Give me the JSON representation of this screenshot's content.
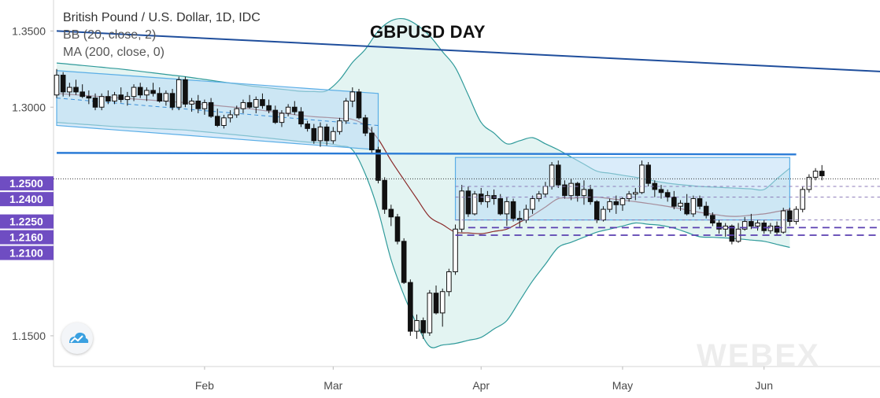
{
  "legend": {
    "symbol": "British Pound / U.S. Dollar, 1D, IDC",
    "bb": "BB (20, close, 2)",
    "ma": "MA (200, close, 0)"
  },
  "watermark_text": "WEBEX",
  "colors": {
    "up_candle": "#ffffff",
    "down_candle": "#111111",
    "band_fill": "#d9f0ee",
    "band_line": "#2f9a9a",
    "basis": "#8a2a2a",
    "trend_dark": "#1f4e9c",
    "support": "#2a7bd6",
    "channel": "#bcdcf5",
    "purple": "#5a3fb0",
    "badge": "#6f4dc2"
  },
  "chart_data": {
    "type": "candlestick",
    "title": "GBPUSD DAY",
    "y_axis": {
      "ticks": [
        "1.3500",
        "1.3000",
        "1.1500"
      ],
      "range": [
        1.135,
        1.37
      ]
    },
    "price_badges": [
      "1.2500",
      "1.2400",
      "1.2250",
      "1.2160",
      "1.2100"
    ],
    "x_axis": {
      "ticks": [
        "Feb",
        "Mar",
        "Apr",
        "May",
        "Jun"
      ],
      "tick_index": [
        23,
        43,
        66,
        88,
        110
      ]
    },
    "candles_ohlc": [
      [
        1.308,
        1.325,
        1.306,
        1.321
      ],
      [
        1.321,
        1.323,
        1.307,
        1.31
      ],
      [
        1.31,
        1.316,
        1.307,
        1.313
      ],
      [
        1.313,
        1.318,
        1.308,
        1.31
      ],
      [
        1.31,
        1.315,
        1.306,
        1.307
      ],
      [
        1.307,
        1.311,
        1.302,
        1.306
      ],
      [
        1.306,
        1.309,
        1.298,
        1.3
      ],
      [
        1.3,
        1.309,
        1.298,
        1.307
      ],
      [
        1.307,
        1.311,
        1.302,
        1.304
      ],
      [
        1.304,
        1.31,
        1.302,
        1.308
      ],
      [
        1.308,
        1.313,
        1.303,
        1.305
      ],
      [
        1.305,
        1.31,
        1.301,
        1.307
      ],
      [
        1.307,
        1.315,
        1.304,
        1.313
      ],
      [
        1.313,
        1.316,
        1.306,
        1.308
      ],
      [
        1.308,
        1.313,
        1.304,
        1.311
      ],
      [
        1.311,
        1.316,
        1.307,
        1.309
      ],
      [
        1.309,
        1.313,
        1.303,
        1.304
      ],
      [
        1.304,
        1.311,
        1.301,
        1.309
      ],
      [
        1.309,
        1.312,
        1.298,
        1.3
      ],
      [
        1.3,
        1.32,
        1.298,
        1.318
      ],
      [
        1.318,
        1.32,
        1.3,
        1.302
      ],
      [
        1.302,
        1.306,
        1.297,
        1.304
      ],
      [
        1.304,
        1.308,
        1.296,
        1.299
      ],
      [
        1.299,
        1.305,
        1.295,
        1.303
      ],
      [
        1.303,
        1.306,
        1.293,
        1.294
      ],
      [
        1.294,
        1.299,
        1.287,
        1.288
      ],
      [
        1.288,
        1.295,
        1.286,
        1.293
      ],
      [
        1.293,
        1.298,
        1.29,
        1.295
      ],
      [
        1.295,
        1.301,
        1.293,
        1.299
      ],
      [
        1.299,
        1.305,
        1.296,
        1.303
      ],
      [
        1.303,
        1.308,
        1.299,
        1.3
      ],
      [
        1.3,
        1.307,
        1.296,
        1.305
      ],
      [
        1.305,
        1.309,
        1.299,
        1.301
      ],
      [
        1.301,
        1.305,
        1.296,
        1.298
      ],
      [
        1.298,
        1.301,
        1.289,
        1.29
      ],
      [
        1.29,
        1.298,
        1.287,
        1.296
      ],
      [
        1.296,
        1.302,
        1.294,
        1.3
      ],
      [
        1.3,
        1.304,
        1.295,
        1.297
      ],
      [
        1.297,
        1.3,
        1.287,
        1.289
      ],
      [
        1.289,
        1.291,
        1.284,
        1.286
      ],
      [
        1.286,
        1.289,
        1.276,
        1.278
      ],
      [
        1.278,
        1.29,
        1.274,
        1.287
      ],
      [
        1.287,
        1.289,
        1.275,
        1.278
      ],
      [
        1.278,
        1.287,
        1.276,
        1.284
      ],
      [
        1.284,
        1.293,
        1.282,
        1.291
      ],
      [
        1.291,
        1.306,
        1.289,
        1.304
      ],
      [
        1.304,
        1.313,
        1.3,
        1.31
      ],
      [
        1.31,
        1.312,
        1.292,
        1.293
      ],
      [
        1.293,
        1.295,
        1.281,
        1.283
      ],
      [
        1.283,
        1.287,
        1.27,
        1.272
      ],
      [
        1.272,
        1.274,
        1.25,
        1.252
      ],
      [
        1.252,
        1.254,
        1.23,
        1.233
      ],
      [
        1.233,
        1.236,
        1.222,
        1.228
      ],
      [
        1.228,
        1.23,
        1.21,
        1.212
      ],
      [
        1.212,
        1.214,
        1.184,
        1.185
      ],
      [
        1.185,
        1.187,
        1.15,
        1.153
      ],
      [
        1.153,
        1.164,
        1.148,
        1.16
      ],
      [
        1.16,
        1.162,
        1.148,
        1.152
      ],
      [
        1.152,
        1.18,
        1.15,
        1.178
      ],
      [
        1.178,
        1.183,
        1.164,
        1.165
      ],
      [
        1.165,
        1.181,
        1.156,
        1.179
      ],
      [
        1.179,
        1.194,
        1.176,
        1.192
      ],
      [
        1.192,
        1.223,
        1.19,
        1.22
      ],
      [
        1.22,
        1.249,
        1.218,
        1.245
      ],
      [
        1.245,
        1.248,
        1.228,
        1.23
      ],
      [
        1.23,
        1.245,
        1.229,
        1.243
      ],
      [
        1.243,
        1.247,
        1.236,
        1.238
      ],
      [
        1.238,
        1.245,
        1.234,
        1.242
      ],
      [
        1.242,
        1.246,
        1.236,
        1.24
      ],
      [
        1.24,
        1.243,
        1.229,
        1.23
      ],
      [
        1.23,
        1.241,
        1.222,
        1.238
      ],
      [
        1.238,
        1.24,
        1.225,
        1.227
      ],
      [
        1.227,
        1.232,
        1.221,
        1.226
      ],
      [
        1.226,
        1.236,
        1.224,
        1.233
      ],
      [
        1.233,
        1.242,
        1.23,
        1.24
      ],
      [
        1.24,
        1.245,
        1.238,
        1.243
      ],
      [
        1.243,
        1.251,
        1.241,
        1.248
      ],
      [
        1.248,
        1.264,
        1.246,
        1.262
      ],
      [
        1.262,
        1.265,
        1.247,
        1.249
      ],
      [
        1.249,
        1.252,
        1.24,
        1.242
      ],
      [
        1.242,
        1.253,
        1.239,
        1.25
      ],
      [
        1.25,
        1.251,
        1.238,
        1.242
      ],
      [
        1.242,
        1.252,
        1.236,
        1.246
      ],
      [
        1.246,
        1.249,
        1.236,
        1.238
      ],
      [
        1.238,
        1.239,
        1.224,
        1.226
      ],
      [
        1.226,
        1.235,
        1.225,
        1.233
      ],
      [
        1.233,
        1.24,
        1.231,
        1.238
      ],
      [
        1.238,
        1.242,
        1.23,
        1.236
      ],
      [
        1.236,
        1.241,
        1.232,
        1.24
      ],
      [
        1.24,
        1.245,
        1.238,
        1.243
      ],
      [
        1.243,
        1.247,
        1.239,
        1.244
      ],
      [
        1.244,
        1.265,
        1.243,
        1.262
      ],
      [
        1.262,
        1.264,
        1.248,
        1.25
      ],
      [
        1.25,
        1.252,
        1.241,
        1.246
      ],
      [
        1.246,
        1.249,
        1.24,
        1.244
      ],
      [
        1.244,
        1.246,
        1.238,
        1.241
      ],
      [
        1.241,
        1.245,
        1.233,
        1.235
      ],
      [
        1.235,
        1.239,
        1.232,
        1.237
      ],
      [
        1.237,
        1.243,
        1.229,
        1.23
      ],
      [
        1.23,
        1.242,
        1.228,
        1.24
      ],
      [
        1.24,
        1.242,
        1.233,
        1.235
      ],
      [
        1.235,
        1.238,
        1.227,
        1.229
      ],
      [
        1.229,
        1.231,
        1.222,
        1.224
      ],
      [
        1.224,
        1.226,
        1.217,
        1.22
      ],
      [
        1.22,
        1.224,
        1.215,
        1.222
      ],
      [
        1.222,
        1.223,
        1.21,
        1.212
      ],
      [
        1.212,
        1.224,
        1.211,
        1.22
      ],
      [
        1.22,
        1.228,
        1.219,
        1.225
      ],
      [
        1.225,
        1.23,
        1.22,
        1.222
      ],
      [
        1.222,
        1.226,
        1.219,
        1.224
      ],
      [
        1.224,
        1.226,
        1.217,
        1.219
      ],
      [
        1.219,
        1.224,
        1.217,
        1.222
      ],
      [
        1.222,
        1.225,
        1.216,
        1.218
      ],
      [
        1.218,
        1.234,
        1.217,
        1.232
      ],
      [
        1.232,
        1.234,
        1.222,
        1.225
      ],
      [
        1.225,
        1.235,
        1.223,
        1.233
      ],
      [
        1.233,
        1.248,
        1.231,
        1.246
      ],
      [
        1.246,
        1.256,
        1.244,
        1.254
      ],
      [
        1.254,
        1.26,
        1.252,
        1.258
      ],
      [
        1.258,
        1.262,
        1.252,
        1.255
      ]
    ],
    "bollinger": {
      "upper_knots": [
        [
          0,
          1.329
        ],
        [
          10,
          1.325
        ],
        [
          20,
          1.32
        ],
        [
          30,
          1.314
        ],
        [
          39,
          1.31
        ],
        [
          43,
          1.311
        ],
        [
          45,
          1.325
        ],
        [
          48,
          1.338
        ],
        [
          50,
          1.35
        ],
        [
          53,
          1.36
        ],
        [
          57,
          1.352
        ],
        [
          62,
          1.326
        ],
        [
          66,
          1.29
        ],
        [
          70,
          1.276
        ],
        [
          74,
          1.28
        ],
        [
          78,
          1.272
        ],
        [
          84,
          1.258
        ],
        [
          90,
          1.254
        ],
        [
          95,
          1.25
        ],
        [
          100,
          1.248
        ],
        [
          105,
          1.247
        ],
        [
          110,
          1.246
        ],
        [
          114,
          1.26
        ]
      ],
      "lower_knots": [
        [
          0,
          1.29
        ],
        [
          10,
          1.287
        ],
        [
          20,
          1.285
        ],
        [
          30,
          1.281
        ],
        [
          39,
          1.277
        ],
        [
          43,
          1.276
        ],
        [
          46,
          1.272
        ],
        [
          49,
          1.248
        ],
        [
          52,
          1.2
        ],
        [
          55,
          1.165
        ],
        [
          58,
          1.143
        ],
        [
          62,
          1.145
        ],
        [
          66,
          1.149
        ],
        [
          70,
          1.16
        ],
        [
          74,
          1.186
        ],
        [
          78,
          1.208
        ],
        [
          84,
          1.218
        ],
        [
          90,
          1.224
        ],
        [
          95,
          1.222
        ],
        [
          100,
          1.215
        ],
        [
          105,
          1.214
        ],
        [
          110,
          1.212
        ],
        [
          114,
          1.208
        ]
      ],
      "basis_knots": [
        [
          0,
          1.309
        ],
        [
          10,
          1.306
        ],
        [
          20,
          1.303
        ],
        [
          30,
          1.299
        ],
        [
          39,
          1.294
        ],
        [
          43,
          1.293
        ],
        [
          46,
          1.292
        ],
        [
          49,
          1.286
        ],
        [
          52,
          1.265
        ],
        [
          55,
          1.246
        ],
        [
          58,
          1.228
        ],
        [
          62,
          1.218
        ],
        [
          66,
          1.217
        ],
        [
          70,
          1.22
        ],
        [
          74,
          1.229
        ],
        [
          78,
          1.24
        ],
        [
          84,
          1.241
        ],
        [
          90,
          1.238
        ],
        [
          95,
          1.235
        ],
        [
          100,
          1.231
        ],
        [
          105,
          1.228
        ],
        [
          110,
          1.23
        ],
        [
          114,
          1.233
        ]
      ]
    },
    "annotations": {
      "falling_channel": {
        "start": [
          0,
          1.324,
          1.288
        ],
        "end": [
          50,
          1.309,
          1.272
        ],
        "midline_end_price": 1.288
      },
      "range_box": {
        "start_index": 62,
        "end_index": 114,
        "top": 1.267,
        "bottom": 1.226
      },
      "long_trendline": {
        "start": [
          0,
          1.35
        ],
        "end": [
          130,
          1.323
        ]
      },
      "support_line": {
        "start": [
          0,
          1.27
        ],
        "end": [
          115,
          1.269
        ]
      },
      "dotted_price_line": 1.253,
      "dashed_levels": [
        {
          "price": 1.248,
          "from_index": 62,
          "color": "neutral"
        },
        {
          "price": 1.241,
          "from_index": 62,
          "color": "neutral"
        },
        {
          "price": 1.226,
          "from_index": 62,
          "color": "neutral"
        },
        {
          "price": 1.221,
          "from_index": 64,
          "color": "purple"
        },
        {
          "price": 1.216,
          "from_index": 62,
          "color": "purple"
        }
      ]
    }
  }
}
